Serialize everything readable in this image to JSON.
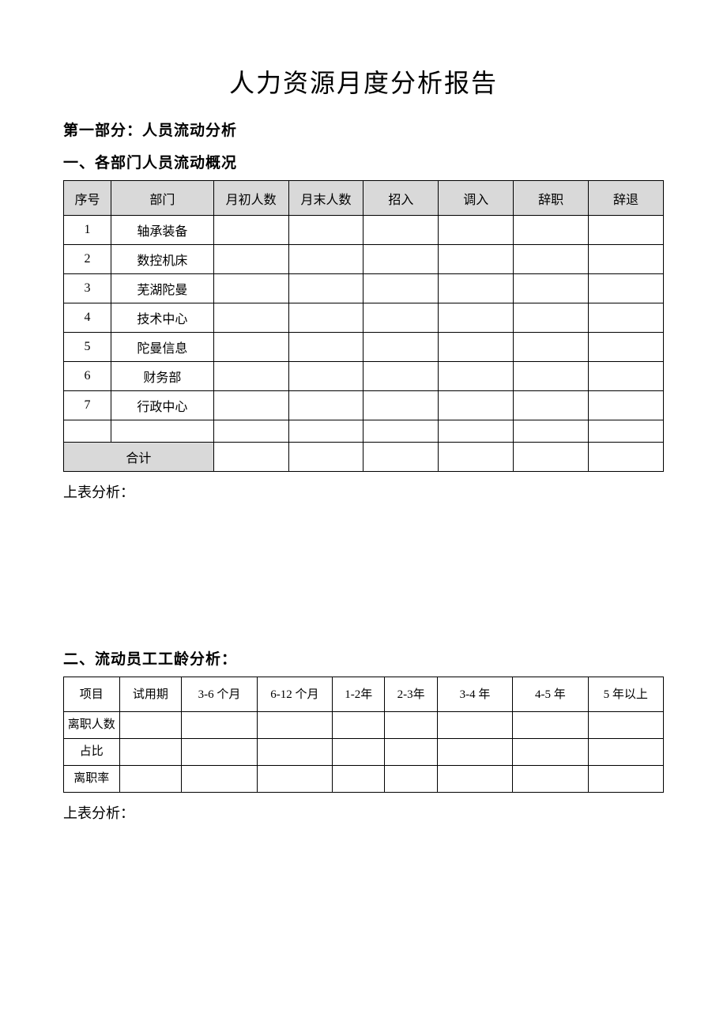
{
  "title": "人力资源月度分析报告",
  "part1": {
    "heading": "第一部分：人员流动分析",
    "section1": {
      "heading": "一、各部门人员流动概况",
      "table": {
        "columns": [
          "序号",
          "部门",
          "月初人数",
          "月末人数",
          "招入",
          "调入",
          "辞职",
          "辞退"
        ],
        "rows": [
          {
            "seq": "1",
            "dept": "轴承装备",
            "begin_count": "",
            "end_count": "",
            "hired": "",
            "transferred_in": "",
            "resigned": "",
            "dismissed": ""
          },
          {
            "seq": "2",
            "dept": "数控机床",
            "begin_count": "",
            "end_count": "",
            "hired": "",
            "transferred_in": "",
            "resigned": "",
            "dismissed": ""
          },
          {
            "seq": "3",
            "dept": "芜湖陀曼",
            "begin_count": "",
            "end_count": "",
            "hired": "",
            "transferred_in": "",
            "resigned": "",
            "dismissed": ""
          },
          {
            "seq": "4",
            "dept": "技术中心",
            "begin_count": "",
            "end_count": "",
            "hired": "",
            "transferred_in": "",
            "resigned": "",
            "dismissed": ""
          },
          {
            "seq": "5",
            "dept": "陀曼信息",
            "begin_count": "",
            "end_count": "",
            "hired": "",
            "transferred_in": "",
            "resigned": "",
            "dismissed": ""
          },
          {
            "seq": "6",
            "dept": "财务部",
            "begin_count": "",
            "end_count": "",
            "hired": "",
            "transferred_in": "",
            "resigned": "",
            "dismissed": ""
          },
          {
            "seq": "7",
            "dept": "行政中心",
            "begin_count": "",
            "end_count": "",
            "hired": "",
            "transferred_in": "",
            "resigned": "",
            "dismissed": ""
          },
          {
            "seq": "",
            "dept": "",
            "begin_count": "",
            "end_count": "",
            "hired": "",
            "transferred_in": "",
            "resigned": "",
            "dismissed": ""
          }
        ],
        "total": {
          "label": "合计",
          "begin_count": "",
          "end_count": "",
          "hired": "",
          "transferred_in": "",
          "resigned": "",
          "dismissed": ""
        }
      },
      "analysis_label": "上表分析："
    },
    "section2": {
      "heading": "二、流动员工工龄分析：",
      "table": {
        "columns": [
          "项目",
          "试用期",
          "3-6 个月",
          "6-12 个月",
          "1-2年",
          "2-3年",
          "3-4 年",
          "4-5 年",
          "5 年以上"
        ],
        "rows": [
          {
            "label": "离职人数",
            "probation": "",
            "m3_6": "",
            "m6_12": "",
            "y1_2": "",
            "y2_3": "",
            "y3_4": "",
            "y4_5": "",
            "y5plus": ""
          },
          {
            "label": "占比",
            "probation": "",
            "m3_6": "",
            "m6_12": "",
            "y1_2": "",
            "y2_3": "",
            "y3_4": "",
            "y4_5": "",
            "y5plus": ""
          },
          {
            "label": "离职率",
            "probation": "",
            "m3_6": "",
            "m6_12": "",
            "y1_2": "",
            "y2_3": "",
            "y3_4": "",
            "y4_5": "",
            "y5plus": ""
          }
        ]
      },
      "analysis_label": "上表分析："
    }
  },
  "styling": {
    "header_bg_color": "#d9d9d9",
    "border_color": "#000000",
    "page_bg_color": "#ffffff",
    "title_fontsize": 32,
    "heading_fontsize": 19,
    "cell_fontsize": 16,
    "font_family": "SimSun"
  }
}
